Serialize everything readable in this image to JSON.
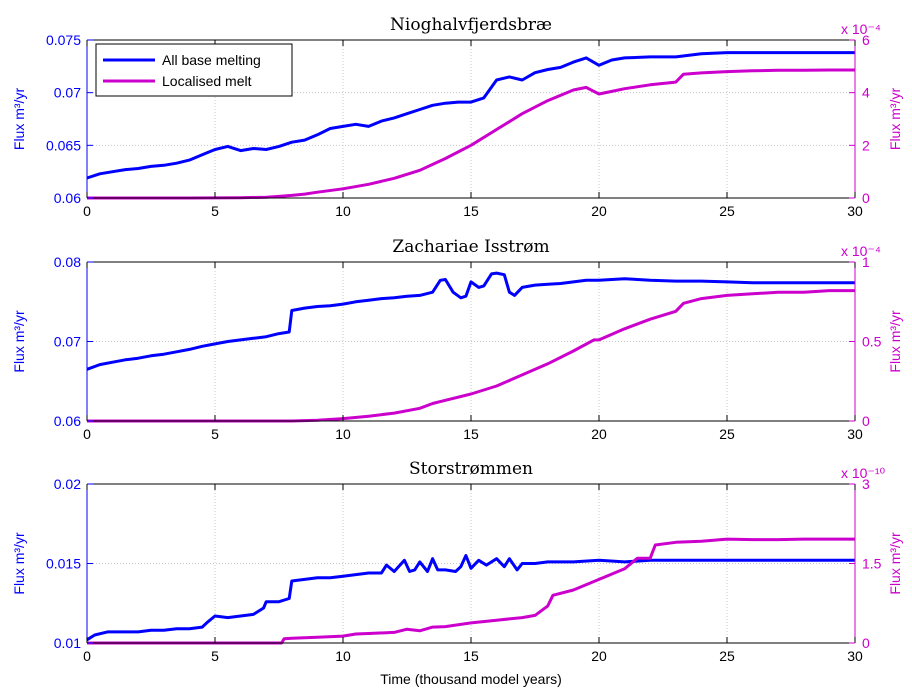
{
  "colors": {
    "left": "#0000ff",
    "right": "#cc00cc",
    "grid": "#c8c8c8",
    "axis": "#000000"
  },
  "xlabel": "Time (thousand model years)",
  "legend": {
    "placement": "top-left of first panel",
    "entries": [
      "All base melting",
      "Localised melt"
    ]
  },
  "chart_data": [
    {
      "type": "line",
      "title": "Nioghalvfjerdsbræ",
      "xlim": [
        0,
        30
      ],
      "xticks": [
        "0",
        "5",
        "10",
        "15",
        "20",
        "25",
        "30"
      ],
      "grid": true,
      "y_left": {
        "label": "Flux m³/yr",
        "lim": [
          0.06,
          0.075
        ],
        "ticks": [
          "0.06",
          "0.065",
          "0.07",
          "0.075"
        ]
      },
      "y_right": {
        "label": "Flux m³/yr",
        "lim": [
          0,
          6
        ],
        "scale_note": "x 10⁻⁴",
        "ticks": [
          "0",
          "2",
          "4",
          "6"
        ]
      },
      "series": [
        {
          "name": "All base melting",
          "axis": "left",
          "color": "#0000ff",
          "x": [
            0,
            0.5,
            1,
            1.5,
            2,
            2.5,
            3,
            3.5,
            4,
            4.5,
            5,
            5.5,
            6,
            6.5,
            7,
            7.5,
            8,
            8.5,
            9,
            9.5,
            10,
            10.5,
            11,
            11.5,
            12,
            12.5,
            13,
            13.5,
            14,
            14.5,
            15,
            15.5,
            16,
            16.5,
            17,
            17.5,
            18,
            18.5,
            19,
            19.5,
            20,
            20.5,
            21,
            22,
            23,
            24,
            25,
            26,
            27,
            28,
            29,
            30
          ],
          "y": [
            0.0619,
            0.0623,
            0.0625,
            0.0627,
            0.0628,
            0.063,
            0.0631,
            0.0633,
            0.0636,
            0.0641,
            0.0646,
            0.0649,
            0.0645,
            0.0647,
            0.0646,
            0.0649,
            0.0653,
            0.0655,
            0.066,
            0.0666,
            0.0668,
            0.067,
            0.0668,
            0.0673,
            0.0676,
            0.068,
            0.0684,
            0.0688,
            0.069,
            0.0691,
            0.0691,
            0.0695,
            0.0712,
            0.0715,
            0.0712,
            0.0719,
            0.0722,
            0.0724,
            0.0729,
            0.0733,
            0.0726,
            0.0731,
            0.0733,
            0.0734,
            0.0734,
            0.0737,
            0.0738,
            0.0738,
            0.0738,
            0.0738,
            0.0738,
            0.0738
          ]
        },
        {
          "name": "Localised melt",
          "axis": "right",
          "color": "#cc00cc",
          "x": [
            0,
            2,
            4,
            6,
            7,
            7.5,
            8,
            8.5,
            9,
            10,
            11,
            12,
            13,
            14,
            15,
            16,
            17,
            18,
            19,
            19.5,
            20,
            20.5,
            21,
            22,
            23,
            23.3,
            24,
            25,
            26,
            27,
            28,
            29,
            30
          ],
          "y": [
            0,
            0,
            0,
            0.01,
            0.03,
            0.06,
            0.1,
            0.15,
            0.22,
            0.35,
            0.52,
            0.75,
            1.05,
            1.5,
            2.0,
            2.6,
            3.2,
            3.7,
            4.1,
            4.2,
            3.95,
            4.05,
            4.15,
            4.3,
            4.4,
            4.7,
            4.75,
            4.8,
            4.83,
            4.85,
            4.85,
            4.86,
            4.86
          ]
        }
      ]
    },
    {
      "type": "line",
      "title": "Zachariae Isstrøm",
      "xlim": [
        0,
        30
      ],
      "xticks": [
        "0",
        "5",
        "10",
        "15",
        "20",
        "25",
        "30"
      ],
      "grid": true,
      "y_left": {
        "label": "Flux m³/yr",
        "lim": [
          0.06,
          0.08
        ],
        "ticks": [
          "0.06",
          "0.07",
          "0.08"
        ]
      },
      "y_right": {
        "label": "Flux m³/yr",
        "lim": [
          0,
          1
        ],
        "scale_note": "x 10⁻⁴",
        "ticks": [
          "0",
          "0.5",
          "1"
        ]
      },
      "series": [
        {
          "name": "All base melting",
          "axis": "left",
          "color": "#0000ff",
          "x": [
            0,
            0.5,
            1,
            1.5,
            2,
            2.5,
            3,
            3.5,
            4,
            4.5,
            5,
            5.5,
            6,
            6.5,
            7,
            7.5,
            7.9,
            8,
            8.5,
            9,
            9.5,
            10,
            10.5,
            11,
            11.5,
            12,
            12.5,
            13,
            13.5,
            13.8,
            14,
            14.3,
            14.6,
            14.8,
            15,
            15.3,
            15.5,
            15.8,
            16,
            16.3,
            16.5,
            16.7,
            17,
            17.5,
            18,
            18.5,
            19,
            19.5,
            20,
            20.5,
            21,
            21.5,
            22,
            23,
            24,
            25,
            26,
            27,
            28,
            29,
            30
          ],
          "y": [
            0.0665,
            0.0671,
            0.0674,
            0.0677,
            0.0679,
            0.0682,
            0.0684,
            0.0687,
            0.069,
            0.0694,
            0.0697,
            0.07,
            0.0702,
            0.0704,
            0.0706,
            0.071,
            0.0712,
            0.0739,
            0.0742,
            0.0744,
            0.0745,
            0.0747,
            0.075,
            0.0752,
            0.0754,
            0.0755,
            0.0757,
            0.0758,
            0.0762,
            0.0777,
            0.0778,
            0.0762,
            0.0755,
            0.0757,
            0.0775,
            0.0768,
            0.077,
            0.0785,
            0.0786,
            0.0784,
            0.0762,
            0.0758,
            0.0768,
            0.0771,
            0.0772,
            0.0773,
            0.0775,
            0.0777,
            0.0777,
            0.0778,
            0.0779,
            0.0778,
            0.0777,
            0.0776,
            0.0776,
            0.0775,
            0.0774,
            0.0774,
            0.0774,
            0.0774,
            0.0774
          ]
        },
        {
          "name": "Localised melt",
          "axis": "right",
          "color": "#cc00cc",
          "x": [
            0,
            4,
            8,
            9,
            10,
            11,
            12,
            13,
            13.5,
            14,
            15,
            16,
            17,
            18,
            19,
            19.8,
            20,
            21,
            22,
            23,
            23.3,
            24,
            25,
            26,
            27,
            28,
            29,
            30
          ],
          "y": [
            0,
            0,
            0,
            0.005,
            0.015,
            0.03,
            0.05,
            0.08,
            0.11,
            0.13,
            0.17,
            0.22,
            0.29,
            0.36,
            0.44,
            0.51,
            0.51,
            0.58,
            0.64,
            0.69,
            0.74,
            0.77,
            0.79,
            0.8,
            0.81,
            0.81,
            0.82,
            0.82
          ]
        }
      ]
    },
    {
      "type": "line",
      "title": "Storstrømmen",
      "xlim": [
        0,
        30
      ],
      "xticks": [
        "0",
        "5",
        "10",
        "15",
        "20",
        "25",
        "30"
      ],
      "grid": true,
      "y_left": {
        "label": "Flux m³/yr",
        "lim": [
          0.01,
          0.02
        ],
        "ticks": [
          "0.01",
          "0.015",
          "0.02"
        ]
      },
      "y_right": {
        "label": "Flux m³/yr",
        "lim": [
          0,
          3
        ],
        "scale_note": "x 10⁻¹⁰",
        "ticks": [
          "0",
          "1.5",
          "3"
        ]
      },
      "series": [
        {
          "name": "All base melting",
          "axis": "left",
          "color": "#0000ff",
          "x": [
            0,
            0.3,
            0.8,
            1.5,
            2,
            2.5,
            3,
            3.5,
            4,
            4.5,
            4.7,
            5,
            5.5,
            6,
            6.5,
            6.9,
            7,
            7.5,
            7.9,
            8,
            8.5,
            9,
            9.5,
            10,
            10.5,
            11,
            11.5,
            11.7,
            12,
            12.4,
            12.6,
            12.8,
            13,
            13.3,
            13.5,
            13.7,
            14,
            14.4,
            14.6,
            14.8,
            15,
            15.3,
            15.6,
            16,
            16.3,
            16.5,
            16.8,
            17,
            17.5,
            18,
            19,
            20,
            21,
            22,
            23,
            24,
            25,
            26,
            27,
            28,
            29,
            30
          ],
          "y": [
            0.0102,
            0.0105,
            0.0107,
            0.0107,
            0.0107,
            0.0108,
            0.0108,
            0.0109,
            0.0109,
            0.011,
            0.0113,
            0.0117,
            0.0116,
            0.0117,
            0.0118,
            0.0122,
            0.0126,
            0.0126,
            0.0128,
            0.0139,
            0.014,
            0.0141,
            0.0141,
            0.0142,
            0.0143,
            0.0144,
            0.0144,
            0.0149,
            0.0145,
            0.0152,
            0.0145,
            0.0146,
            0.0151,
            0.0145,
            0.0153,
            0.0146,
            0.0146,
            0.0145,
            0.0148,
            0.0155,
            0.0147,
            0.0152,
            0.0149,
            0.0153,
            0.0148,
            0.0153,
            0.0146,
            0.015,
            0.015,
            0.0151,
            0.0151,
            0.0152,
            0.0151,
            0.0152,
            0.0152,
            0.0152,
            0.0152,
            0.0152,
            0.0152,
            0.0152,
            0.0152,
            0.0152
          ]
        },
        {
          "name": "Localised melt",
          "axis": "right",
          "color": "#cc00cc",
          "x": [
            0,
            4,
            7.6,
            7.7,
            8,
            9,
            10,
            10.5,
            11,
            12,
            12.5,
            13,
            13.5,
            14,
            15,
            16,
            17,
            17.5,
            18,
            18.2,
            19,
            20,
            21,
            21.5,
            22,
            22.2,
            23,
            24,
            25,
            26,
            27,
            28,
            29,
            30
          ],
          "y": [
            0,
            0,
            0,
            0.08,
            0.09,
            0.11,
            0.13,
            0.17,
            0.18,
            0.2,
            0.26,
            0.23,
            0.3,
            0.31,
            0.38,
            0.43,
            0.48,
            0.52,
            0.7,
            0.9,
            1.0,
            1.2,
            1.4,
            1.6,
            1.6,
            1.85,
            1.9,
            1.92,
            1.96,
            1.95,
            1.95,
            1.96,
            1.96,
            1.96
          ]
        }
      ]
    }
  ]
}
